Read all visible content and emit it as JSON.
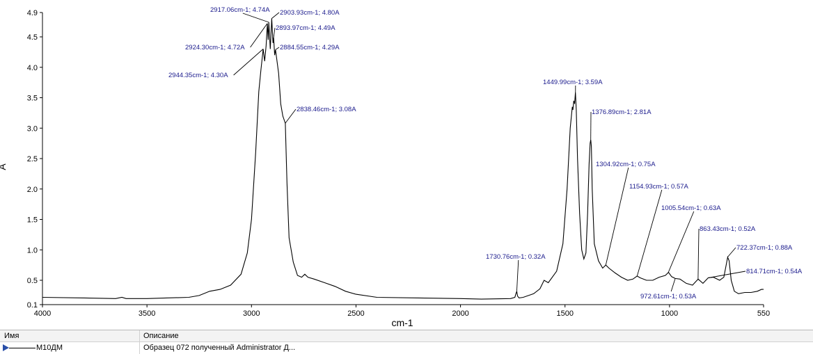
{
  "chart_data": {
    "type": "line",
    "xlabel": "cm-1",
    "ylabel": "A",
    "xlim": [
      4000,
      550
    ],
    "ylim": [
      0.1,
      4.9
    ],
    "x_reversed": true,
    "x_ticks": [
      "4000",
      "3500",
      "3000",
      "2500",
      "2000",
      "1500",
      "1000",
      "550"
    ],
    "x_tick_values": [
      4000,
      3500,
      3000,
      2500,
      2000,
      1500,
      1000,
      550
    ],
    "y_ticks": [
      "0.1",
      "0.5",
      "1.0",
      "1.5",
      "2.0",
      "2.5",
      "3.0",
      "3.5",
      "4.0",
      "4.5",
      "4.9"
    ],
    "y_tick_values": [
      0.1,
      0.5,
      1.0,
      1.5,
      2.0,
      2.5,
      3.0,
      3.5,
      4.0,
      4.5,
      4.9
    ],
    "series": [
      {
        "name": "M10ДМ",
        "color": "#000000",
        "x": [
          4000,
          3800,
          3650,
          3620,
          3600,
          3500,
          3300,
          3250,
          3200,
          3150,
          3100,
          3050,
          3020,
          3000,
          2980,
          2965,
          2955,
          2944,
          2937,
          2930,
          2924,
          2920,
          2917,
          2910,
          2903,
          2897,
          2894,
          2889,
          2885,
          2870,
          2860,
          2850,
          2840,
          2838,
          2830,
          2820,
          2800,
          2780,
          2760,
          2745,
          2730,
          2700,
          2650,
          2600,
          2550,
          2500,
          2400,
          2200,
          2000,
          1900,
          1760,
          1740,
          1735,
          1731,
          1727,
          1720,
          1700,
          1650,
          1620,
          1600,
          1580,
          1540,
          1510,
          1490,
          1475,
          1465,
          1462,
          1458,
          1454,
          1450,
          1446,
          1440,
          1430,
          1420,
          1410,
          1400,
          1392,
          1385,
          1380,
          1377,
          1374,
          1370,
          1360,
          1340,
          1320,
          1305,
          1290,
          1260,
          1230,
          1200,
          1175,
          1155,
          1140,
          1110,
          1080,
          1050,
          1020,
          1005,
          990,
          973,
          950,
          920,
          890,
          863,
          840,
          815,
          790,
          760,
          740,
          722,
          715,
          705,
          690,
          670,
          640,
          610,
          580,
          560,
          550
        ],
        "y": [
          0.22,
          0.21,
          0.2,
          0.22,
          0.2,
          0.2,
          0.22,
          0.25,
          0.32,
          0.35,
          0.42,
          0.6,
          0.95,
          1.5,
          2.6,
          3.6,
          3.95,
          4.3,
          4.1,
          4.35,
          4.72,
          4.45,
          4.74,
          4.3,
          4.8,
          4.4,
          4.49,
          4.2,
          4.29,
          3.9,
          3.4,
          3.2,
          3.1,
          3.08,
          2.1,
          1.2,
          0.8,
          0.58,
          0.55,
          0.6,
          0.55,
          0.52,
          0.46,
          0.4,
          0.32,
          0.27,
          0.22,
          0.21,
          0.2,
          0.19,
          0.2,
          0.22,
          0.28,
          0.32,
          0.24,
          0.21,
          0.22,
          0.28,
          0.36,
          0.5,
          0.46,
          0.65,
          1.1,
          2.0,
          3.0,
          3.35,
          3.3,
          3.45,
          3.4,
          3.59,
          3.3,
          2.5,
          1.6,
          1.0,
          0.85,
          0.95,
          1.6,
          2.4,
          2.75,
          2.81,
          2.7,
          2.0,
          1.1,
          0.82,
          0.7,
          0.75,
          0.7,
          0.62,
          0.55,
          0.5,
          0.52,
          0.57,
          0.54,
          0.5,
          0.5,
          0.55,
          0.58,
          0.63,
          0.56,
          0.53,
          0.52,
          0.45,
          0.42,
          0.52,
          0.45,
          0.54,
          0.55,
          0.5,
          0.55,
          0.88,
          0.82,
          0.5,
          0.32,
          0.28,
          0.3,
          0.3,
          0.32,
          0.35,
          0.35
        ]
      }
    ],
    "annotations": [
      {
        "label": "2917.06cm-1; 4.74A",
        "x": 2917.06,
        "y": 4.74
      },
      {
        "label": "2903.93cm-1; 4.80A",
        "x": 2903.93,
        "y": 4.8
      },
      {
        "label": "2893.97cm-1; 4.49A",
        "x": 2893.97,
        "y": 4.49
      },
      {
        "label": "2924.30cm-1; 4.72A",
        "x": 2924.3,
        "y": 4.72
      },
      {
        "label": "2884.55cm-1; 4.29A",
        "x": 2884.55,
        "y": 4.29
      },
      {
        "label": "2944.35cm-1; 4.30A",
        "x": 2944.35,
        "y": 4.3
      },
      {
        "label": "2838.46cm-1; 3.08A",
        "x": 2838.46,
        "y": 3.08
      },
      {
        "label": "1449.99cm-1; 3.59A",
        "x": 1449.99,
        "y": 3.59
      },
      {
        "label": "1376.89cm-1; 2.81A",
        "x": 1376.89,
        "y": 2.81
      },
      {
        "label": "1304.92cm-1; 0.75A",
        "x": 1304.92,
        "y": 0.75
      },
      {
        "label": "1154.93cm-1; 0.57A",
        "x": 1154.93,
        "y": 0.57
      },
      {
        "label": "1005.54cm-1; 0.63A",
        "x": 1005.54,
        "y": 0.63
      },
      {
        "label": "863.43cm-1; 0.52A",
        "x": 863.43,
        "y": 0.52
      },
      {
        "label": "1730.76cm-1; 0.32A",
        "x": 1730.76,
        "y": 0.32
      },
      {
        "label": "722.37cm-1; 0.88A",
        "x": 722.37,
        "y": 0.88
      },
      {
        "label": "814.71cm-1; 0.54A",
        "x": 814.71,
        "y": 0.54
      },
      {
        "label": "972.61cm-1; 0.53A",
        "x": 972.61,
        "y": 0.53
      }
    ]
  },
  "legend": {
    "col_name": "Имя",
    "col_description": "Описание",
    "row_name": "M10ДМ",
    "row_description": "Образец 072 полученный Administrator Д..."
  }
}
